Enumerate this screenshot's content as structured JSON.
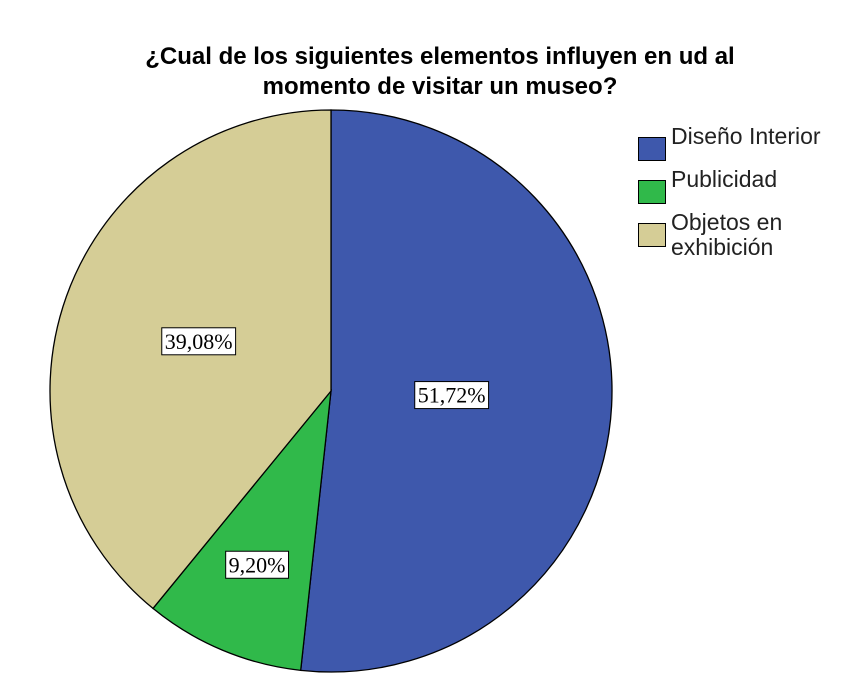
{
  "chart_data": {
    "type": "pie",
    "title": "¿Cual de los siguientes elementos influyen en ud al momento de visitar un museo?",
    "categories": [
      "Diseño Interior",
      "Publicidad",
      "Objetos en exhibición"
    ],
    "values": [
      51.72,
      9.2,
      39.08
    ],
    "value_labels": [
      "51,72%",
      "9,20%",
      "39,08%"
    ],
    "colors": [
      "#3e58ac",
      "#30b94a",
      "#d5cd96"
    ],
    "legend": "right"
  }
}
